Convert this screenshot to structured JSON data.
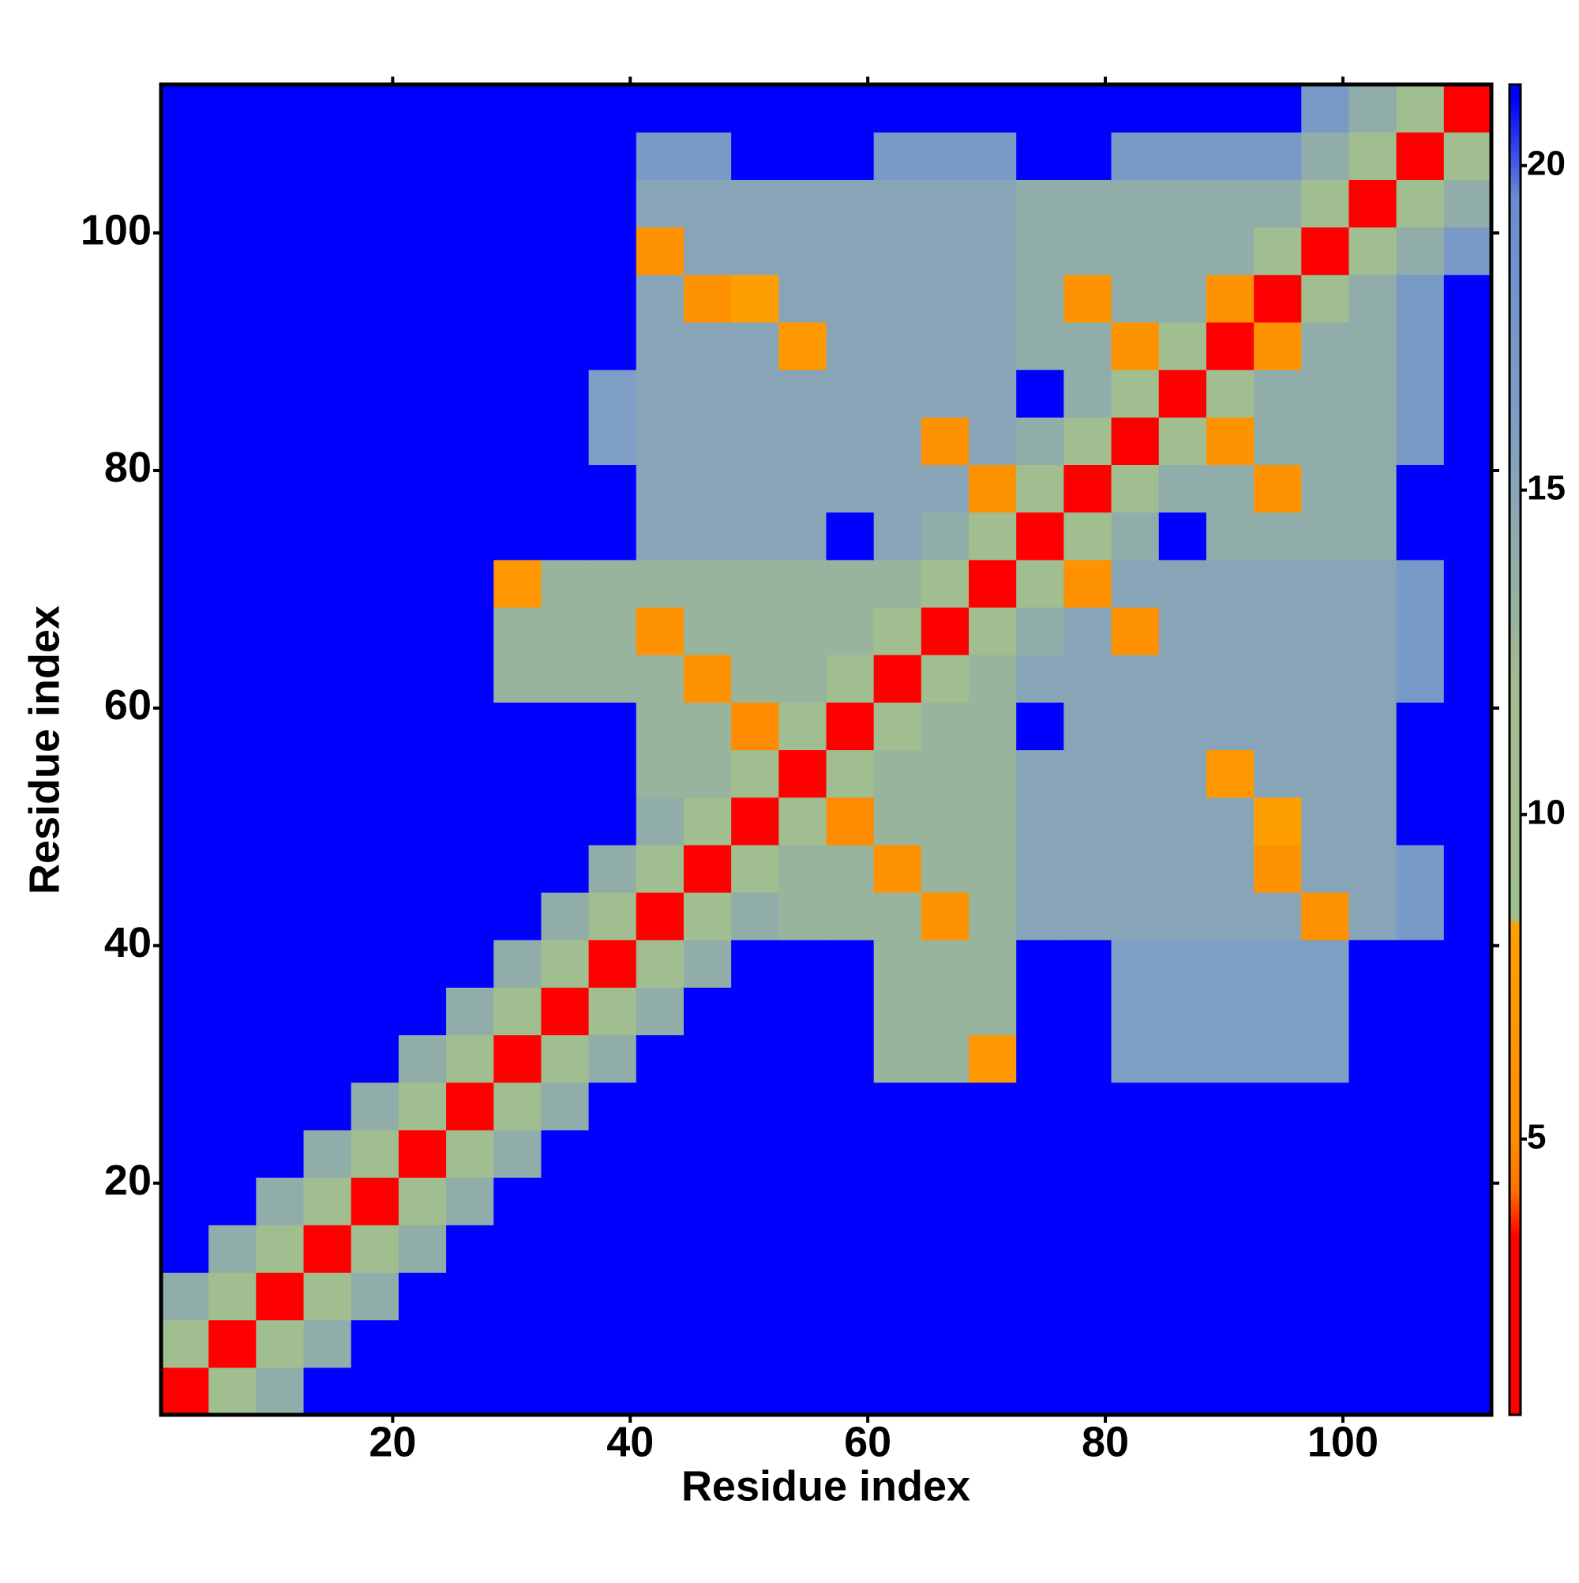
{
  "chart_data": {
    "type": "heatmap",
    "x_label": "Residue index",
    "y_label": "Residue index",
    "xlim": [
      0.5,
      112.5
    ],
    "ylim": [
      0.5,
      112.5
    ],
    "xticks": [
      20,
      40,
      60,
      80,
      100
    ],
    "yticks": [
      20,
      40,
      60,
      80,
      100
    ],
    "xbins": [
      0.5,
      4.5,
      8.5,
      12.5,
      16.5,
      20.5,
      24.5,
      28.5,
      32.5,
      36.5,
      40.5,
      44.5,
      48.5,
      52.5,
      56.5,
      60.5,
      64.5,
      68.5,
      72.5,
      76.5,
      80.5,
      84.5,
      88.5,
      92.5,
      96.5,
      100.5,
      104.5,
      108.5,
      112.5
    ],
    "ybins": [
      0.5,
      4.5,
      8.5,
      12.5,
      16.5,
      20.5,
      24.5,
      28.5,
      32.5,
      36.5,
      40.5,
      44.5,
      48.5,
      52.5,
      56.5,
      60.5,
      64.5,
      68.5,
      72.5,
      76.5,
      80.5,
      84.5,
      88.5,
      92.5,
      96.5,
      100.5,
      104.5,
      108.5,
      112.5
    ],
    "values": [
      [
        2,
        9,
        14,
        21,
        21,
        21,
        21,
        21,
        21,
        21,
        21,
        21,
        21,
        21,
        21,
        21,
        21,
        21,
        21,
        21,
        21,
        21,
        21,
        21,
        21,
        21,
        21,
        21
      ],
      [
        9,
        2,
        9,
        14,
        21,
        21,
        21,
        21,
        21,
        21,
        21,
        21,
        21,
        21,
        21,
        21,
        21,
        21,
        21,
        21,
        21,
        21,
        21,
        21,
        21,
        21,
        21,
        21
      ],
      [
        14,
        9,
        2,
        9,
        14,
        21,
        21,
        21,
        21,
        21,
        21,
        21,
        21,
        21,
        21,
        21,
        21,
        21,
        21,
        21,
        21,
        21,
        21,
        21,
        21,
        21,
        21,
        21
      ],
      [
        21,
        14,
        9,
        2,
        9,
        14,
        21,
        21,
        21,
        21,
        21,
        21,
        21,
        21,
        21,
        21,
        21,
        21,
        21,
        21,
        21,
        21,
        21,
        21,
        21,
        21,
        21,
        21
      ],
      [
        21,
        21,
        14,
        9,
        2,
        9,
        14,
        21,
        21,
        21,
        21,
        21,
        21,
        21,
        21,
        21,
        21,
        21,
        21,
        21,
        21,
        21,
        21,
        21,
        21,
        21,
        21,
        21
      ],
      [
        21,
        21,
        21,
        14,
        9,
        2,
        9,
        14,
        21,
        21,
        21,
        21,
        21,
        21,
        21,
        21,
        21,
        21,
        21,
        21,
        21,
        21,
        21,
        21,
        21,
        21,
        21,
        21
      ],
      [
        21,
        21,
        21,
        21,
        14,
        9,
        2,
        9,
        14,
        21,
        21,
        21,
        21,
        21,
        21,
        21,
        21,
        21,
        21,
        21,
        21,
        21,
        21,
        21,
        21,
        21,
        21,
        21
      ],
      [
        21,
        21,
        21,
        21,
        21,
        14,
        9,
        2,
        9,
        14,
        21,
        21,
        21,
        21,
        21,
        13,
        13,
        7,
        21,
        21,
        16,
        16,
        16,
        16,
        16,
        21,
        21,
        21
      ],
      [
        21,
        21,
        21,
        21,
        21,
        21,
        14,
        9,
        2,
        9,
        14,
        21,
        21,
        21,
        21,
        13,
        13,
        13,
        21,
        21,
        16,
        16,
        16,
        16,
        16,
        21,
        21,
        21
      ],
      [
        21,
        21,
        21,
        21,
        21,
        21,
        21,
        14,
        9,
        2,
        9,
        14,
        21,
        21,
        21,
        13,
        13,
        13,
        21,
        21,
        16,
        16,
        16,
        16,
        16,
        21,
        21,
        21
      ],
      [
        21,
        21,
        21,
        21,
        21,
        21,
        21,
        21,
        14,
        9,
        2,
        9,
        14,
        13,
        13,
        13,
        6,
        13,
        15,
        15,
        15,
        15,
        15,
        15,
        6,
        15,
        17,
        21
      ],
      [
        21,
        21,
        21,
        21,
        21,
        21,
        21,
        21,
        21,
        14,
        9,
        2,
        9,
        13,
        13,
        6,
        13,
        13,
        15,
        15,
        15,
        15,
        15,
        6,
        15,
        15,
        17,
        21
      ],
      [
        21,
        21,
        21,
        21,
        21,
        21,
        21,
        21,
        21,
        21,
        14,
        9,
        2,
        9,
        5,
        13,
        13,
        13,
        15,
        15,
        15,
        15,
        15,
        8,
        15,
        15,
        21,
        21
      ],
      [
        21,
        21,
        21,
        21,
        21,
        21,
        21,
        21,
        21,
        21,
        13,
        13,
        9,
        2,
        9,
        13,
        13,
        13,
        15,
        15,
        15,
        15,
        7,
        15,
        15,
        15,
        21,
        21
      ],
      [
        21,
        21,
        21,
        21,
        21,
        21,
        21,
        21,
        21,
        21,
        13,
        13,
        5,
        9,
        2,
        9,
        13,
        13,
        21,
        15,
        15,
        15,
        15,
        15,
        15,
        15,
        21,
        21
      ],
      [
        21,
        21,
        21,
        21,
        21,
        21,
        21,
        13,
        13,
        13,
        13,
        6,
        13,
        13,
        9,
        2,
        9,
        13,
        15,
        15,
        15,
        15,
        15,
        15,
        15,
        15,
        17,
        21
      ],
      [
        21,
        21,
        21,
        21,
        21,
        21,
        21,
        13,
        13,
        13,
        6,
        13,
        13,
        13,
        13,
        9,
        2,
        9,
        14,
        15,
        6,
        15,
        15,
        15,
        15,
        15,
        17,
        21
      ],
      [
        21,
        21,
        21,
        21,
        21,
        21,
        21,
        7,
        13,
        13,
        13,
        13,
        13,
        13,
        13,
        13,
        9,
        2,
        9,
        6,
        15,
        15,
        15,
        15,
        15,
        15,
        17,
        21
      ],
      [
        21,
        21,
        21,
        21,
        21,
        21,
        21,
        21,
        21,
        21,
        15,
        15,
        15,
        15,
        21,
        15,
        14,
        9,
        2,
        9,
        14,
        21,
        14,
        14,
        14,
        14,
        21,
        21
      ],
      [
        21,
        21,
        21,
        21,
        21,
        21,
        21,
        21,
        21,
        21,
        15,
        15,
        15,
        15,
        15,
        15,
        15,
        6,
        9,
        2,
        9,
        14,
        14,
        6,
        14,
        14,
        21,
        21
      ],
      [
        21,
        21,
        21,
        21,
        21,
        21,
        21,
        21,
        21,
        16,
        15,
        15,
        15,
        15,
        15,
        15,
        6,
        15,
        14,
        9,
        2,
        9,
        6,
        14,
        14,
        14,
        17,
        21
      ],
      [
        21,
        21,
        21,
        21,
        21,
        21,
        21,
        21,
        21,
        16,
        15,
        15,
        15,
        15,
        15,
        15,
        15,
        15,
        21,
        14,
        9,
        2,
        9,
        14,
        14,
        14,
        17,
        21
      ],
      [
        21,
        21,
        21,
        21,
        21,
        21,
        21,
        21,
        21,
        21,
        15,
        15,
        15,
        7,
        15,
        15,
        15,
        15,
        14,
        14,
        6,
        9,
        2,
        6,
        14,
        14,
        17,
        21
      ],
      [
        21,
        21,
        21,
        21,
        21,
        21,
        21,
        21,
        21,
        21,
        15,
        6,
        8,
        15,
        15,
        15,
        15,
        15,
        14,
        6,
        14,
        14,
        6,
        2,
        9,
        14,
        17,
        21
      ],
      [
        21,
        21,
        21,
        21,
        21,
        21,
        21,
        21,
        21,
        21,
        6,
        15,
        15,
        15,
        15,
        15,
        15,
        15,
        14,
        14,
        14,
        14,
        14,
        9,
        2,
        9,
        14,
        17
      ],
      [
        21,
        21,
        21,
        21,
        21,
        21,
        21,
        21,
        21,
        21,
        15,
        15,
        15,
        15,
        15,
        15,
        15,
        15,
        14,
        14,
        14,
        14,
        14,
        14,
        9,
        2,
        9,
        14
      ],
      [
        21,
        21,
        21,
        21,
        21,
        21,
        21,
        21,
        21,
        21,
        17,
        17,
        21,
        21,
        21,
        17,
        17,
        17,
        21,
        21,
        17,
        17,
        17,
        17,
        14,
        9,
        2,
        9
      ],
      [
        21,
        21,
        21,
        21,
        21,
        21,
        21,
        21,
        21,
        21,
        21,
        21,
        21,
        21,
        21,
        21,
        21,
        21,
        21,
        21,
        21,
        21,
        21,
        21,
        17,
        14,
        9,
        2
      ]
    ],
    "colorbar": {
      "zlim": [
        0.75,
        21.25
      ],
      "zticks": [
        5,
        10,
        15,
        20
      ],
      "colorscale": [
        [
          0.75,
          "#ff0000"
        ],
        [
          3.5,
          "#ff0000"
        ],
        [
          4.2,
          "#ff7000"
        ],
        [
          5,
          "#ff8c00"
        ],
        [
          8.3,
          "#ffa000"
        ],
        [
          8.4,
          "#9fbf8f"
        ],
        [
          12,
          "#a2bb90"
        ],
        [
          16,
          "#7f9ec4"
        ],
        [
          19.5,
          "#6a8ccf"
        ],
        [
          21,
          "#0000ff"
        ],
        [
          21.25,
          "#0000ff"
        ]
      ]
    }
  }
}
